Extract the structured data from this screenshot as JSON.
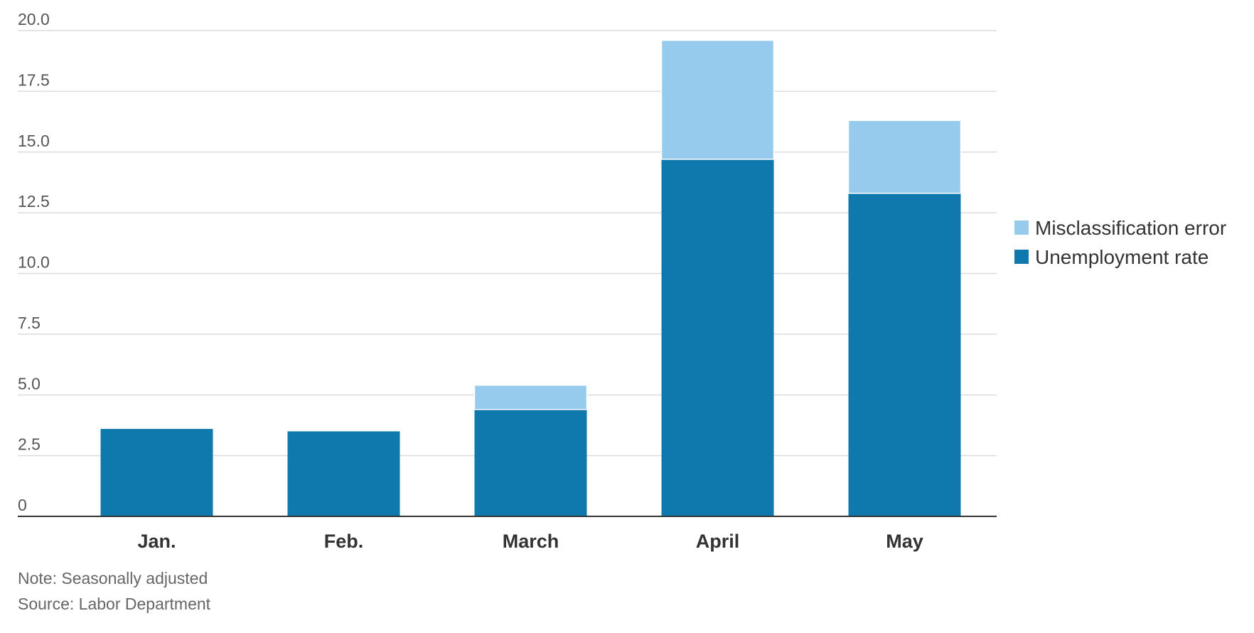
{
  "chart_data": {
    "type": "stacked_bar",
    "categories": [
      "Jan.",
      "Feb.",
      "March",
      "April",
      "May"
    ],
    "series": [
      {
        "name": "Unemployment rate",
        "color": "#0f78ad",
        "values": [
          3.6,
          3.5,
          4.4,
          14.7,
          13.3
        ]
      },
      {
        "name": "Misclassification error",
        "color": "#96cbee",
        "values": [
          null,
          null,
          1.0,
          4.9,
          3.0
        ]
      }
    ],
    "ylim": [
      0,
      20
    ],
    "yticks": [
      0,
      2.5,
      {
        "value": 5,
        "label": "5.0"
      },
      7.5,
      {
        "value": 10,
        "label": "10.0"
      },
      12.5,
      {
        "value": 15,
        "label": "15.0"
      },
      17.5,
      {
        "value": 20,
        "label": "20.0"
      }
    ],
    "grid": true,
    "legend": "right",
    "notes": [
      "Note: Seasonally adjusted",
      "Source: Labor Department"
    ]
  }
}
